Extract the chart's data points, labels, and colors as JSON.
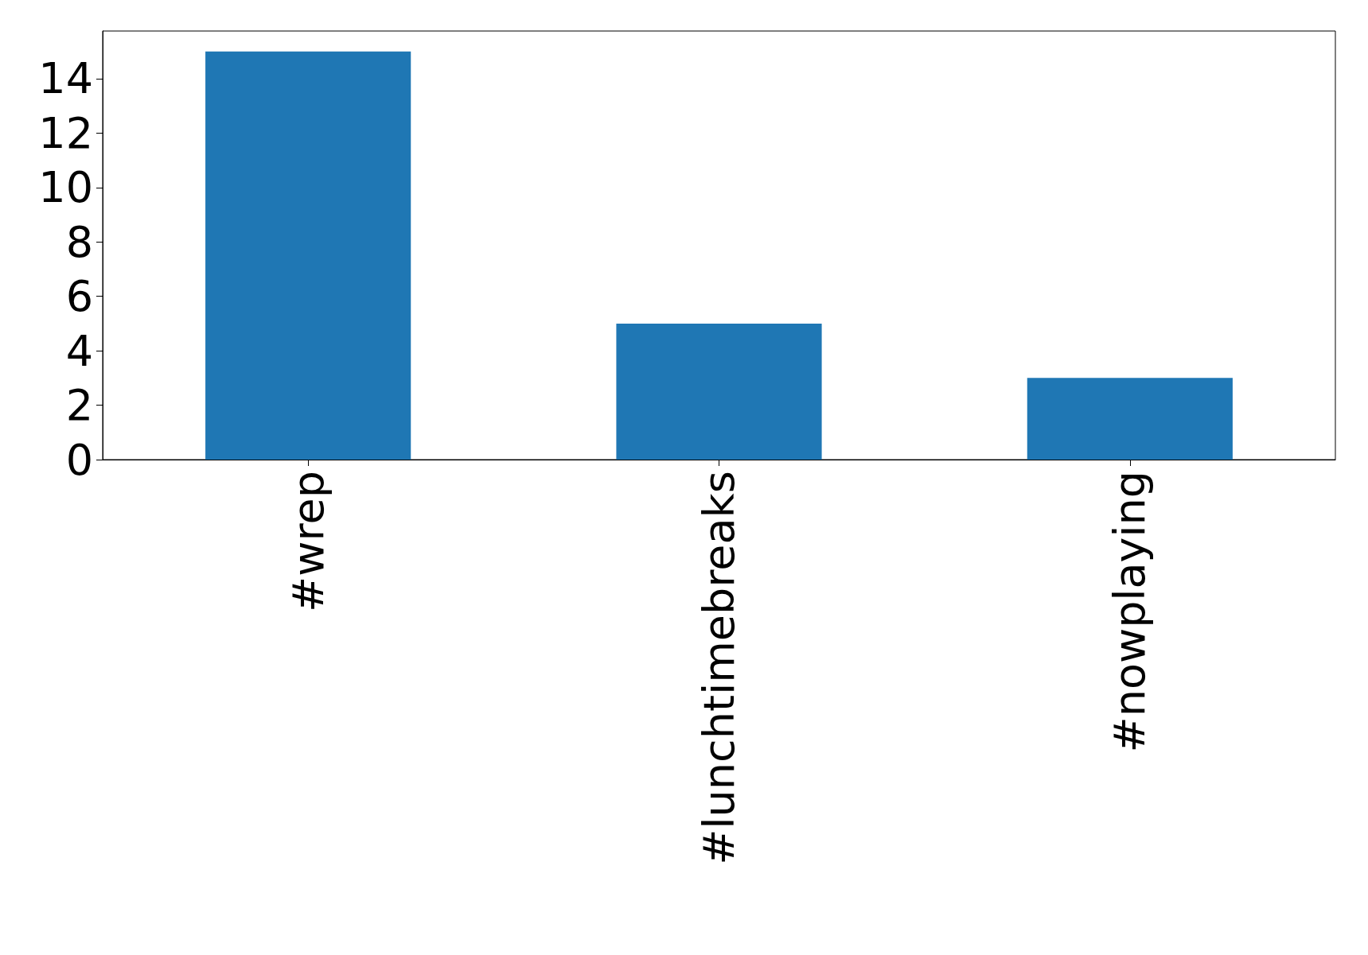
{
  "chart_data": {
    "type": "bar",
    "categories": [
      "#wrep",
      "#lunchtimebreaks",
      "#nowplaying"
    ],
    "values": [
      15,
      5,
      3
    ],
    "color": "#1f77b4",
    "ylim": [
      0,
      15.75
    ],
    "yticks": [
      0,
      2,
      4,
      6,
      8,
      10,
      12,
      14
    ],
    "grid": false
  }
}
